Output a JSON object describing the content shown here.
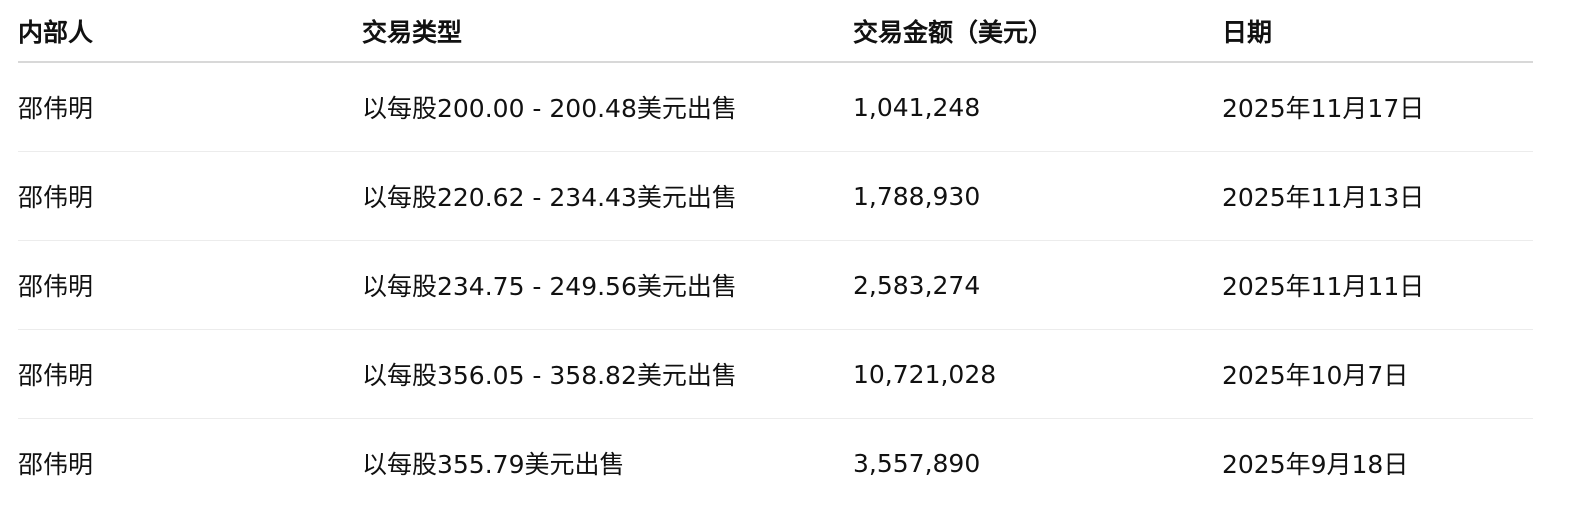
{
  "table": {
    "headers": [
      "内部人",
      "交易类型",
      "交易金额（美元）",
      "日期"
    ],
    "rows": [
      [
        "邵伟明",
        "以每股200.00 - 200.48美元出售",
        "1,041,248",
        "2025年11月17日"
      ],
      [
        "邵伟明",
        "以每股220.62 - 234.43美元出售",
        "1,788,930",
        "2025年11月13日"
      ],
      [
        "邵伟明",
        "以每股234.75 - 249.56美元出售",
        "2,583,274",
        "2025年11月11日"
      ],
      [
        "邵伟明",
        "以每股356.05 - 358.82美元出售",
        "10,721,028",
        "2025年10月7日"
      ],
      [
        "邵伟明",
        "以每股355.79美元出售",
        "3,557,890",
        "2025年9月18日"
      ]
    ]
  }
}
